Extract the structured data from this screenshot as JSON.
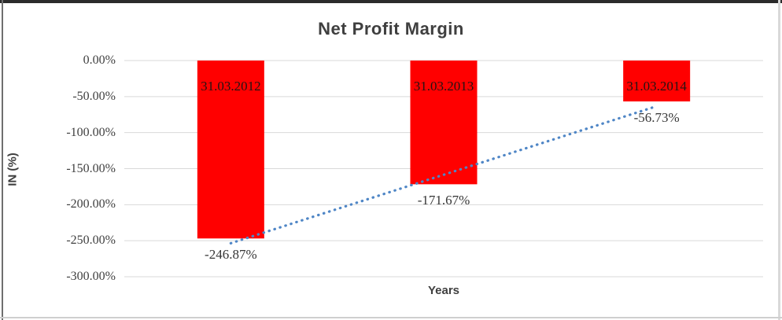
{
  "chart_data": {
    "type": "bar",
    "title": "Net Profit Margin",
    "xlabel": "Years",
    "ylabel": "IN (%)",
    "categories": [
      "31.03.2012",
      "31.03.2013",
      "31.03.2014"
    ],
    "values": [
      -246.87,
      -171.67,
      -56.73
    ],
    "data_labels": [
      "-246.87%",
      "-171.67%",
      "-56.73%"
    ],
    "y_ticks": [
      {
        "value": 0,
        "label": "0.00%"
      },
      {
        "value": -50,
        "label": "-50.00%"
      },
      {
        "value": -100,
        "label": "-100.00%"
      },
      {
        "value": -150,
        "label": "-150.00%"
      },
      {
        "value": -200,
        "label": "-200.00%"
      },
      {
        "value": -250,
        "label": "-250.00%"
      },
      {
        "value": -300,
        "label": "-300.00%"
      }
    ],
    "ylim": [
      -300,
      0
    ],
    "grid": true,
    "legend": "none",
    "bar_color": "#ff0000",
    "grid_color": "#d9d9d9",
    "trendline": {
      "type": "linear",
      "style": "dotted",
      "color": "#4f86c6"
    }
  }
}
